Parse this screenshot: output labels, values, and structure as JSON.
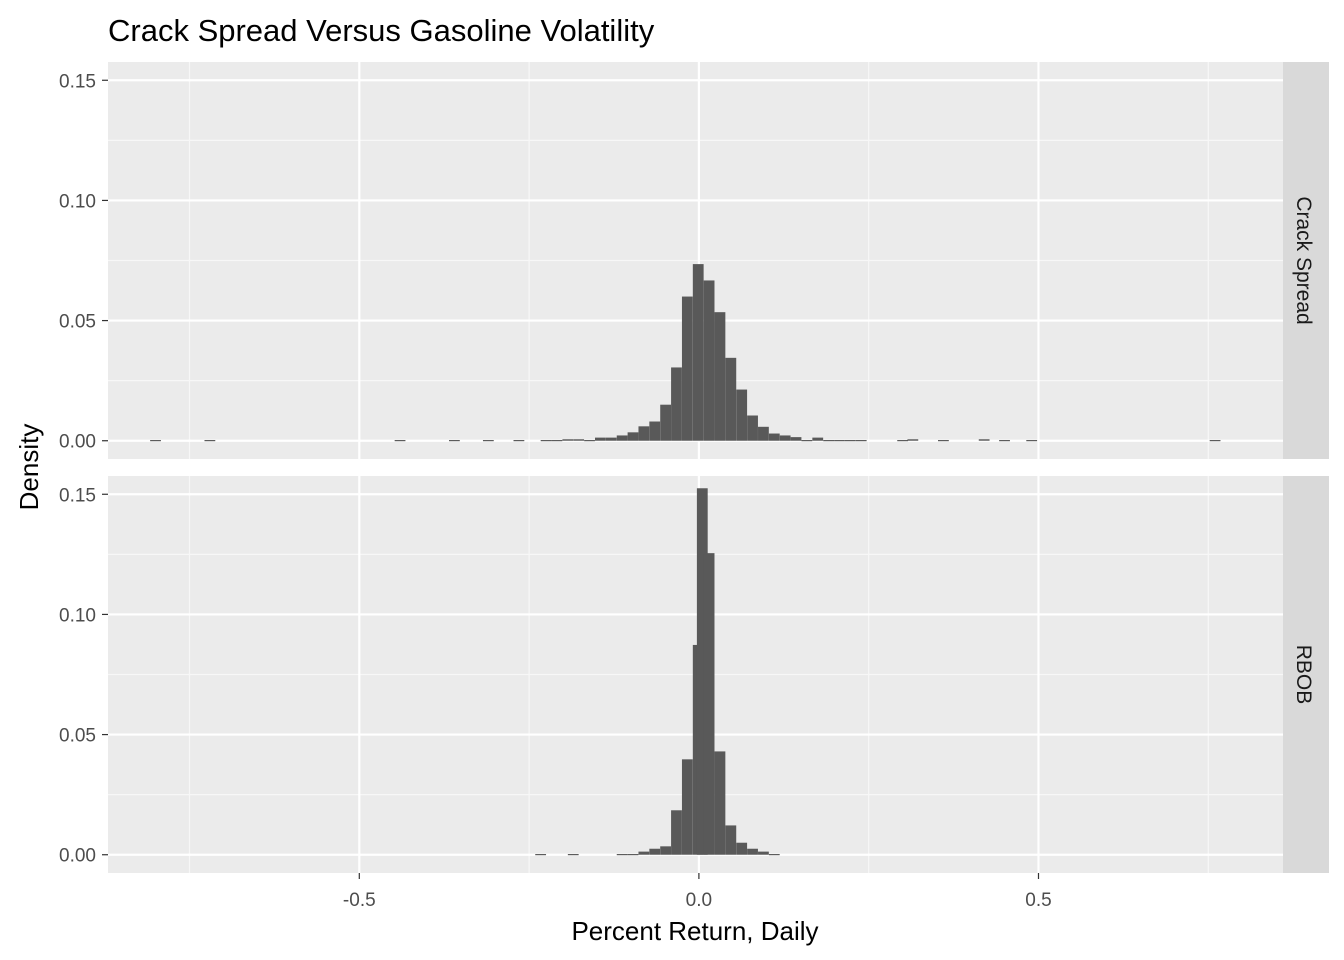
{
  "chart_data": {
    "type": "histogram",
    "title": "Crack Spread Versus Gasoline Volatility",
    "xlabel": "Percent Return, Daily",
    "ylabel": "Density",
    "xlim": [
      -0.87,
      0.86
    ],
    "x_ticks": [
      -0.5,
      0.0,
      0.5
    ],
    "x_tick_labels": [
      "-0.5",
      "0.0",
      "0.5"
    ],
    "y_ticks": [
      0.0,
      0.05,
      0.1,
      0.15
    ],
    "y_tick_labels": [
      "0.00",
      "0.05",
      "0.10",
      "0.15"
    ],
    "grid": true,
    "bin_width": 0.0159,
    "colors": {
      "panel_bg": "#ebebeb",
      "strip_bg": "#d9d9d9",
      "bar": "#595959",
      "grid": "#ffffff"
    },
    "panels": [
      {
        "name": "Crack Spread",
        "ylim": [
          -0.0076,
          0.1576
        ],
        "bars": [
          {
            "x": -0.8,
            "y": 0.0003
          },
          {
            "x": -0.72,
            "y": 0.0003
          },
          {
            "x": -0.44,
            "y": 0.0003
          },
          {
            "x": -0.36,
            "y": 0.0003
          },
          {
            "x": -0.31,
            "y": 0.0003
          },
          {
            "x": -0.265,
            "y": 0.0003
          },
          {
            "x": -0.225,
            "y": 0.0003
          },
          {
            "x": -0.209,
            "y": 0.0003
          },
          {
            "x": -0.193,
            "y": 0.0006
          },
          {
            "x": -0.177,
            "y": 0.0006
          },
          {
            "x": -0.161,
            "y": 0.0003
          },
          {
            "x": -0.145,
            "y": 0.0013
          },
          {
            "x": -0.129,
            "y": 0.0013
          },
          {
            "x": -0.113,
            "y": 0.0022
          },
          {
            "x": -0.097,
            "y": 0.0035
          },
          {
            "x": -0.081,
            "y": 0.006
          },
          {
            "x": -0.065,
            "y": 0.008
          },
          {
            "x": -0.049,
            "y": 0.015
          },
          {
            "x": -0.033,
            "y": 0.0305
          },
          {
            "x": -0.017,
            "y": 0.06
          },
          {
            "x": -0.001,
            "y": 0.0735
          },
          {
            "x": 0.015,
            "y": 0.0667
          },
          {
            "x": 0.031,
            "y": 0.0535
          },
          {
            "x": 0.047,
            "y": 0.0345
          },
          {
            "x": 0.063,
            "y": 0.0213
          },
          {
            "x": 0.079,
            "y": 0.0105
          },
          {
            "x": 0.095,
            "y": 0.0058
          },
          {
            "x": 0.111,
            "y": 0.003
          },
          {
            "x": 0.127,
            "y": 0.0022
          },
          {
            "x": 0.143,
            "y": 0.0015
          },
          {
            "x": 0.159,
            "y": 0.0003
          },
          {
            "x": 0.175,
            "y": 0.0013
          },
          {
            "x": 0.191,
            "y": 0.0003
          },
          {
            "x": 0.207,
            "y": 0.0003
          },
          {
            "x": 0.223,
            "y": 0.0003
          },
          {
            "x": 0.239,
            "y": 0.0003
          },
          {
            "x": 0.3,
            "y": 0.0003
          },
          {
            "x": 0.315,
            "y": 0.0006
          },
          {
            "x": 0.36,
            "y": 0.0003
          },
          {
            "x": 0.42,
            "y": 0.0006
          },
          {
            "x": 0.45,
            "y": 0.0003
          },
          {
            "x": 0.49,
            "y": 0.0003
          },
          {
            "x": 0.76,
            "y": 0.0003
          }
        ]
      },
      {
        "name": "RBOB",
        "ylim": [
          -0.0076,
          0.1576
        ],
        "bars": [
          {
            "x": -0.233,
            "y": 0.0003
          },
          {
            "x": -0.185,
            "y": 0.0003
          },
          {
            "x": -0.113,
            "y": 0.0003
          },
          {
            "x": -0.097,
            "y": 0.0003
          },
          {
            "x": -0.081,
            "y": 0.0013
          },
          {
            "x": -0.065,
            "y": 0.0025
          },
          {
            "x": -0.049,
            "y": 0.0035
          },
          {
            "x": -0.033,
            "y": 0.0185
          },
          {
            "x": -0.017,
            "y": 0.0397
          },
          {
            "x": -0.001,
            "y": 0.0873
          },
          {
            "x": 0.005,
            "y": 0.1525
          },
          {
            "x": 0.015,
            "y": 0.1255
          },
          {
            "x": 0.031,
            "y": 0.043
          },
          {
            "x": 0.047,
            "y": 0.0122
          },
          {
            "x": 0.063,
            "y": 0.005
          },
          {
            "x": 0.079,
            "y": 0.0025
          },
          {
            "x": 0.095,
            "y": 0.0013
          },
          {
            "x": 0.111,
            "y": 0.0003
          }
        ]
      }
    ]
  }
}
